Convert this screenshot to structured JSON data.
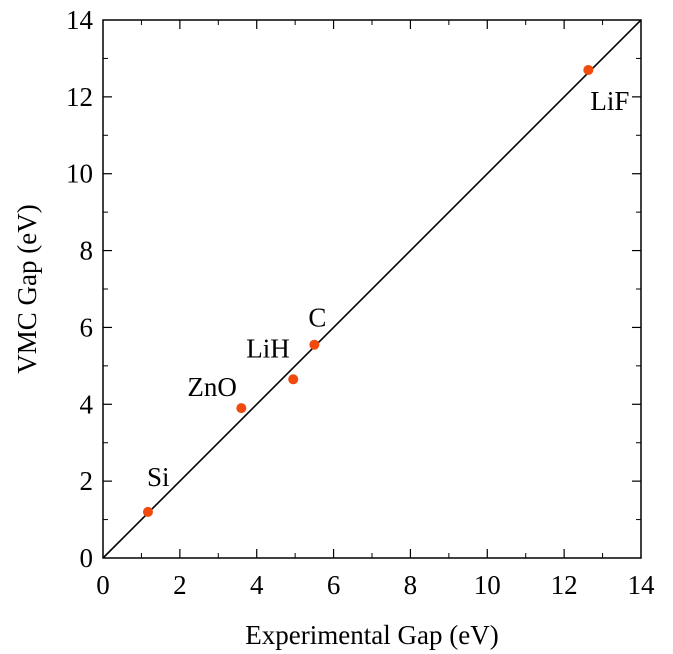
{
  "chart_data": {
    "type": "scatter",
    "xlabel": "Experimental Gap (eV)",
    "ylabel": "VMC Gap (eV)",
    "xlim": [
      0,
      14
    ],
    "ylim": [
      0,
      14
    ],
    "xticks": [
      "0",
      "2",
      "4",
      "6",
      "8",
      "10",
      "12",
      "14"
    ],
    "yticks": [
      "0",
      "2",
      "4",
      "6",
      "8",
      "10",
      "12",
      "14"
    ],
    "reference_line": {
      "from": [
        0,
        0
      ],
      "to": [
        14,
        14
      ],
      "color": "#000000"
    },
    "points": [
      {
        "label": "Si",
        "x": 1.17,
        "y": 1.2
      },
      {
        "label": "ZnO",
        "x": 3.6,
        "y": 3.9
      },
      {
        "label": "LiH",
        "x": 4.95,
        "y": 4.65
      },
      {
        "label": "C",
        "x": 5.5,
        "y": 5.55
      },
      {
        "label": "LiF",
        "x": 12.63,
        "y": 12.7
      }
    ],
    "marker_color": "#f04a0c",
    "grid": false
  }
}
